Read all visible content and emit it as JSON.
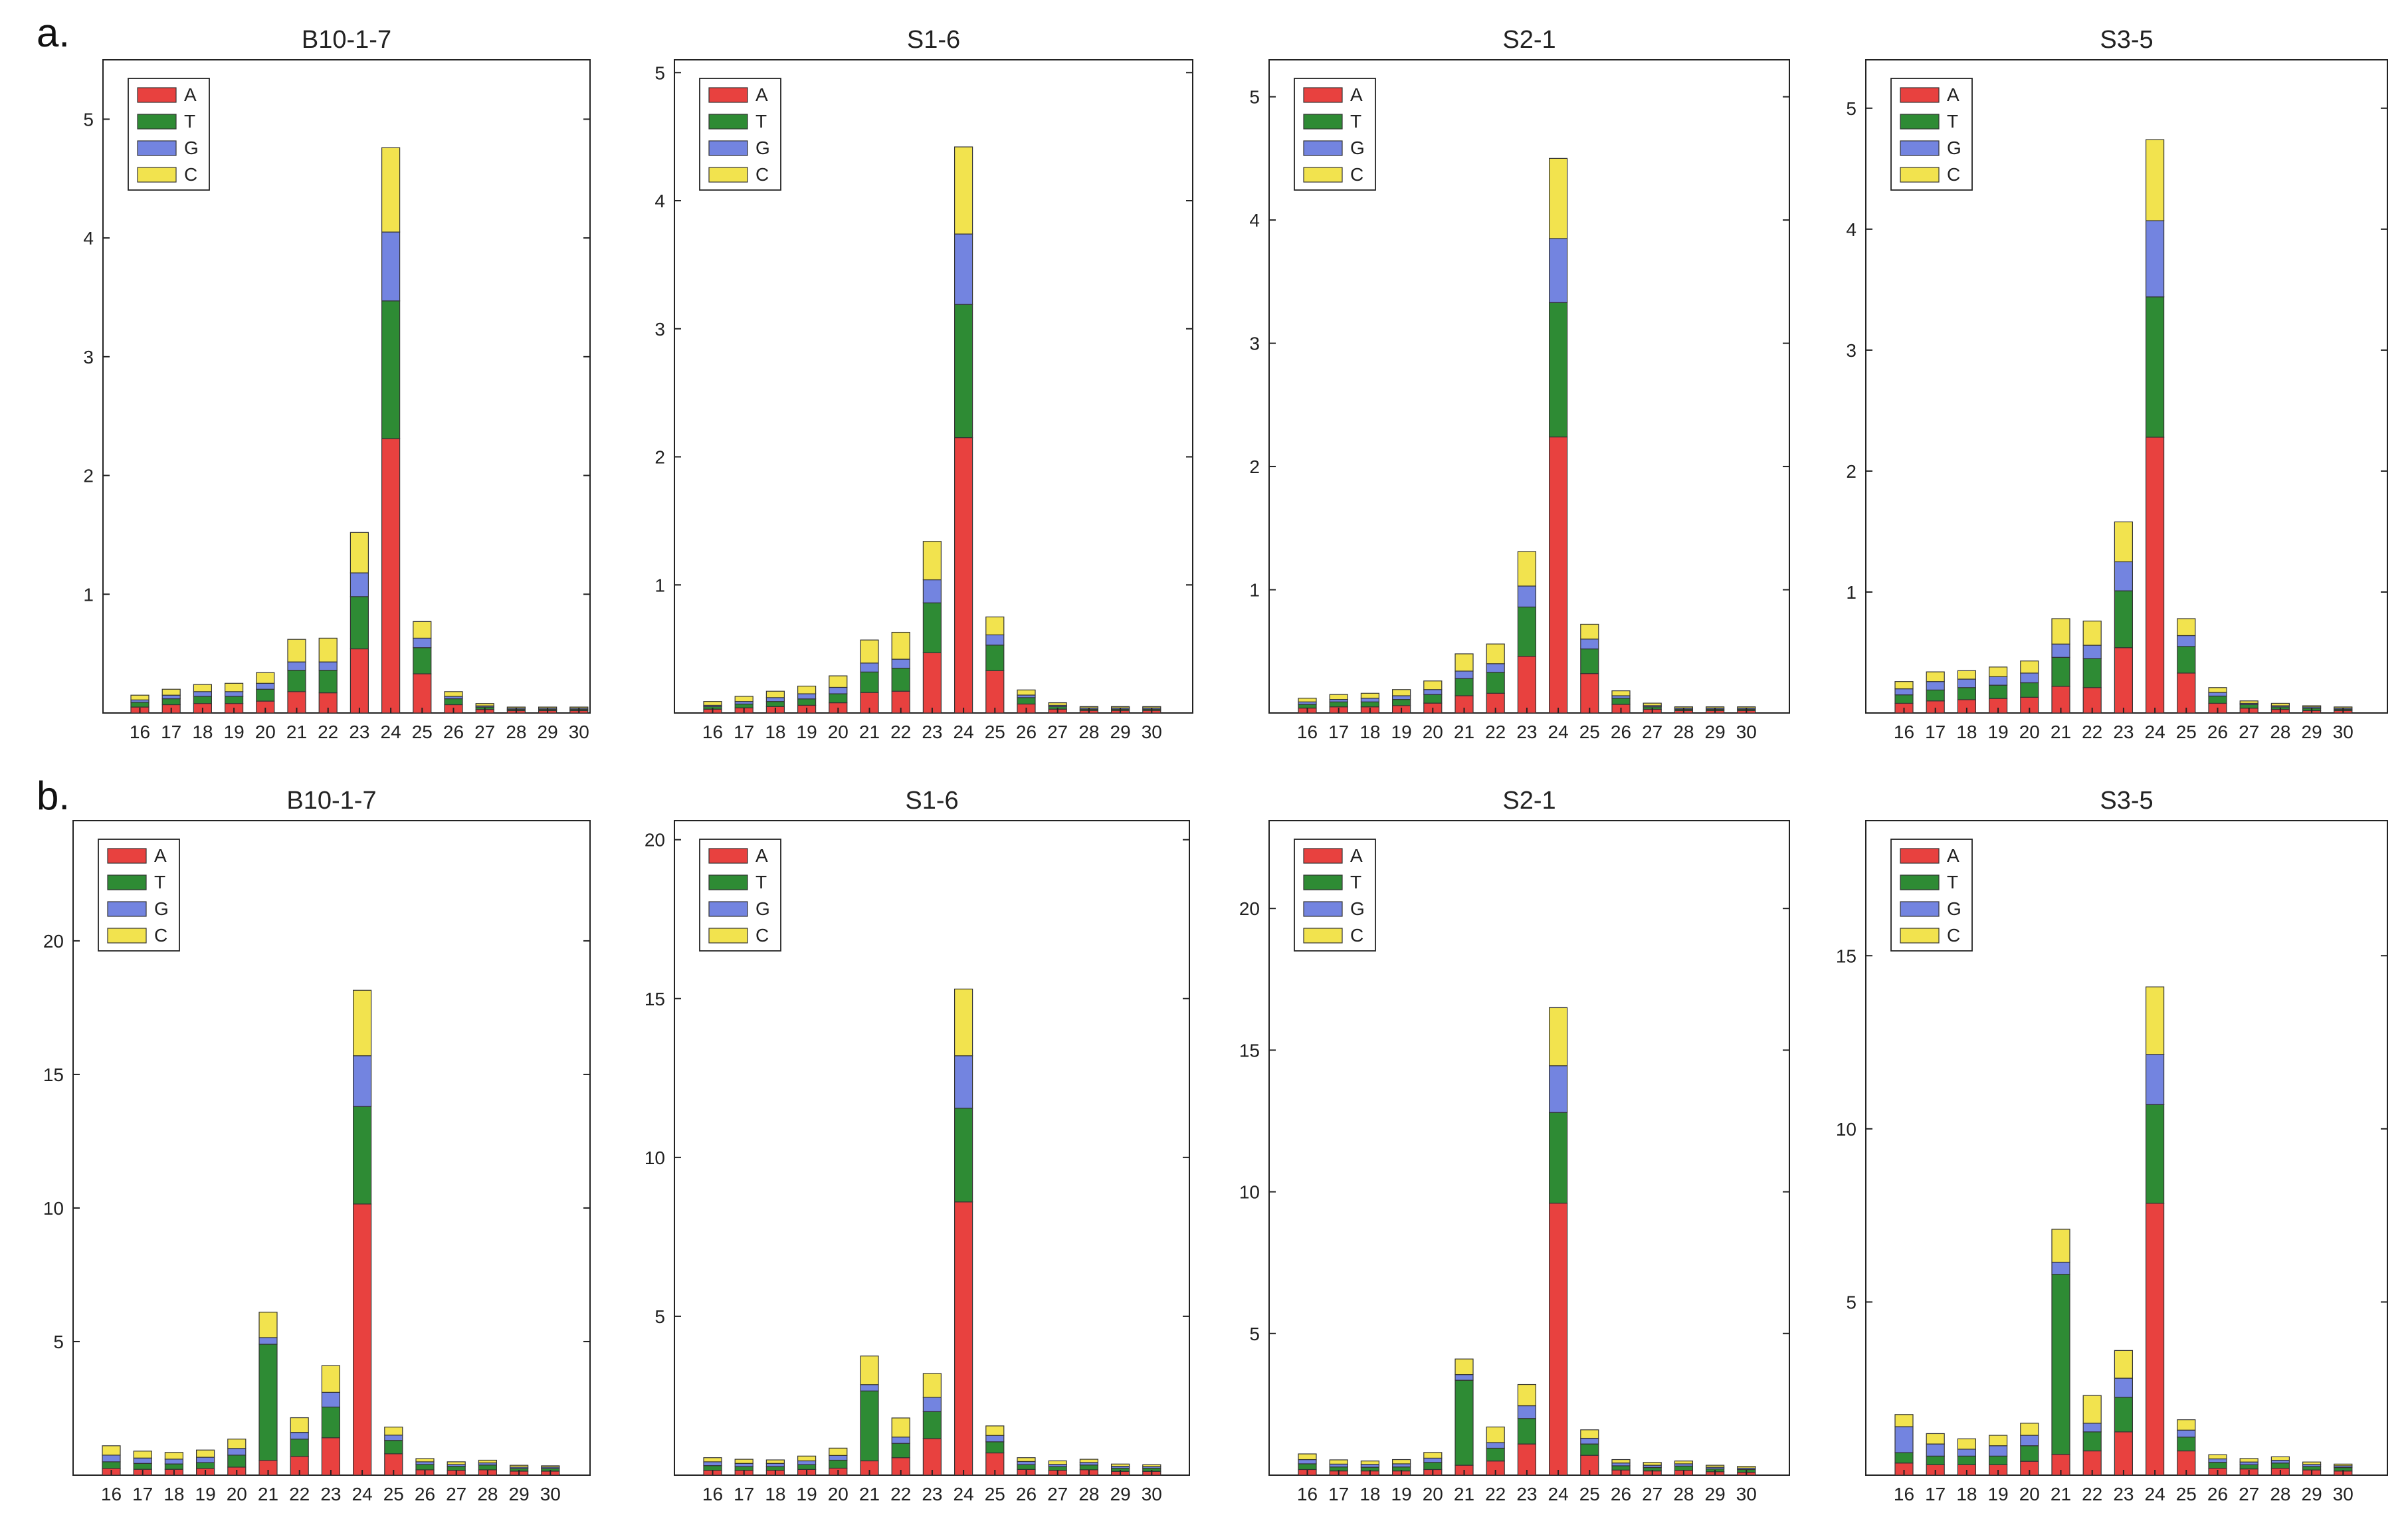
{
  "panel_labels": [
    "a.",
    "b."
  ],
  "colors": {
    "A": "#e8413f",
    "T": "#2e8b34",
    "G": "#7384e0",
    "C": "#f2e34e"
  },
  "chart_data": [
    {
      "type": "bar",
      "title": "B10-1-7",
      "ylim": [
        0,
        5.5
      ],
      "yticks": [
        1,
        2,
        3,
        4,
        5
      ],
      "categories": [
        "16",
        "17",
        "18",
        "19",
        "20",
        "21",
        "22",
        "23",
        "24",
        "25",
        "26",
        "27",
        "28",
        "29",
        "30"
      ],
      "series": [
        {
          "name": "A",
          "values": [
            0.05,
            0.07,
            0.08,
            0.08,
            0.1,
            0.18,
            0.17,
            0.54,
            2.31,
            0.33,
            0.07,
            0.03,
            0.02,
            0.02,
            0.02
          ]
        },
        {
          "name": "T",
          "values": [
            0.04,
            0.05,
            0.06,
            0.06,
            0.1,
            0.18,
            0.19,
            0.44,
            1.16,
            0.22,
            0.05,
            0.02,
            0.01,
            0.01,
            0.01
          ]
        },
        {
          "name": "G",
          "values": [
            0.02,
            0.03,
            0.04,
            0.04,
            0.05,
            0.07,
            0.07,
            0.2,
            0.58,
            0.08,
            0.02,
            0.01,
            0.01,
            0.01,
            0.01
          ]
        },
        {
          "name": "C",
          "values": [
            0.04,
            0.05,
            0.06,
            0.07,
            0.09,
            0.19,
            0.2,
            0.34,
            0.71,
            0.14,
            0.04,
            0.02,
            0.01,
            0.01,
            0.01
          ]
        }
      ]
    },
    {
      "type": "bar",
      "title": "S1-6",
      "ylim": [
        0,
        5.1
      ],
      "yticks": [
        1,
        2,
        3,
        4,
        5
      ],
      "categories": [
        "16",
        "17",
        "18",
        "19",
        "20",
        "21",
        "22",
        "23",
        "24",
        "25",
        "26",
        "27",
        "28",
        "29",
        "30"
      ],
      "series": [
        {
          "name": "A",
          "values": [
            0.03,
            0.04,
            0.05,
            0.06,
            0.08,
            0.16,
            0.17,
            0.47,
            2.15,
            0.33,
            0.07,
            0.03,
            0.02,
            0.02,
            0.02
          ]
        },
        {
          "name": "T",
          "values": [
            0.02,
            0.03,
            0.04,
            0.05,
            0.07,
            0.16,
            0.18,
            0.39,
            1.04,
            0.2,
            0.05,
            0.02,
            0.01,
            0.01,
            0.01
          ]
        },
        {
          "name": "G",
          "values": [
            0.01,
            0.02,
            0.03,
            0.04,
            0.05,
            0.07,
            0.07,
            0.18,
            0.55,
            0.08,
            0.02,
            0.01,
            0.01,
            0.01,
            0.01
          ]
        },
        {
          "name": "C",
          "values": [
            0.03,
            0.04,
            0.05,
            0.06,
            0.09,
            0.18,
            0.21,
            0.3,
            0.68,
            0.14,
            0.04,
            0.02,
            0.01,
            0.01,
            0.01
          ]
        }
      ]
    },
    {
      "type": "bar",
      "title": "S2-1",
      "ylim": [
        0,
        5.3
      ],
      "yticks": [
        1,
        2,
        3,
        4,
        5
      ],
      "categories": [
        "16",
        "17",
        "18",
        "19",
        "20",
        "21",
        "22",
        "23",
        "24",
        "25",
        "26",
        "27",
        "28",
        "29",
        "30"
      ],
      "series": [
        {
          "name": "A",
          "values": [
            0.04,
            0.05,
            0.05,
            0.06,
            0.08,
            0.14,
            0.16,
            0.46,
            2.24,
            0.32,
            0.07,
            0.03,
            0.02,
            0.02,
            0.02
          ]
        },
        {
          "name": "T",
          "values": [
            0.03,
            0.04,
            0.04,
            0.05,
            0.07,
            0.14,
            0.17,
            0.4,
            1.09,
            0.2,
            0.05,
            0.02,
            0.01,
            0.01,
            0.01
          ]
        },
        {
          "name": "G",
          "values": [
            0.02,
            0.02,
            0.03,
            0.03,
            0.04,
            0.06,
            0.07,
            0.17,
            0.52,
            0.08,
            0.02,
            0.01,
            0.01,
            0.01,
            0.01
          ]
        },
        {
          "name": "C",
          "values": [
            0.03,
            0.04,
            0.04,
            0.05,
            0.07,
            0.14,
            0.16,
            0.28,
            0.65,
            0.12,
            0.04,
            0.02,
            0.01,
            0.01,
            0.01
          ]
        }
      ]
    },
    {
      "type": "bar",
      "title": "S3-5",
      "ylim": [
        0,
        5.4
      ],
      "yticks": [
        1,
        2,
        3,
        4,
        5
      ],
      "categories": [
        "16",
        "17",
        "18",
        "19",
        "20",
        "21",
        "22",
        "23",
        "24",
        "25",
        "26",
        "27",
        "28",
        "29",
        "30"
      ],
      "series": [
        {
          "name": "A",
          "values": [
            0.08,
            0.1,
            0.11,
            0.12,
            0.13,
            0.22,
            0.21,
            0.54,
            2.28,
            0.33,
            0.08,
            0.04,
            0.03,
            0.02,
            0.02
          ]
        },
        {
          "name": "T",
          "values": [
            0.07,
            0.09,
            0.1,
            0.11,
            0.12,
            0.24,
            0.24,
            0.47,
            1.16,
            0.22,
            0.06,
            0.03,
            0.02,
            0.02,
            0.01
          ]
        },
        {
          "name": "G",
          "values": [
            0.05,
            0.07,
            0.07,
            0.07,
            0.08,
            0.11,
            0.11,
            0.24,
            0.63,
            0.09,
            0.03,
            0.01,
            0.01,
            0.01,
            0.01
          ]
        },
        {
          "name": "C",
          "values": [
            0.06,
            0.08,
            0.07,
            0.08,
            0.1,
            0.21,
            0.2,
            0.33,
            0.67,
            0.14,
            0.04,
            0.02,
            0.02,
            0.01,
            0.01
          ]
        }
      ]
    },
    {
      "type": "bar",
      "title": "B10-1-7",
      "ylim": [
        0,
        24.5
      ],
      "yticks": [
        5,
        10,
        15,
        20
      ],
      "categories": [
        "16",
        "17",
        "18",
        "19",
        "20",
        "21",
        "22",
        "23",
        "24",
        "25",
        "26",
        "27",
        "28",
        "29",
        "30"
      ],
      "series": [
        {
          "name": "A",
          "values": [
            0.25,
            0.22,
            0.22,
            0.25,
            0.3,
            0.55,
            0.7,
            1.4,
            10.15,
            0.8,
            0.2,
            0.18,
            0.2,
            0.15,
            0.15
          ]
        },
        {
          "name": "T",
          "values": [
            0.25,
            0.22,
            0.2,
            0.22,
            0.45,
            4.35,
            0.65,
            1.15,
            3.65,
            0.5,
            0.2,
            0.15,
            0.18,
            0.1,
            0.1
          ]
        },
        {
          "name": "G",
          "values": [
            0.25,
            0.2,
            0.18,
            0.2,
            0.25,
            0.25,
            0.25,
            0.55,
            1.9,
            0.2,
            0.1,
            0.07,
            0.08,
            0.05,
            0.05
          ]
        },
        {
          "name": "C",
          "values": [
            0.35,
            0.26,
            0.25,
            0.27,
            0.35,
            0.95,
            0.55,
            1.0,
            2.45,
            0.3,
            0.12,
            0.1,
            0.1,
            0.07,
            0.05
          ]
        }
      ]
    },
    {
      "type": "bar",
      "title": "S1-6",
      "ylim": [
        0,
        20.6
      ],
      "yticks": [
        5,
        10,
        15,
        20
      ],
      "categories": [
        "16",
        "17",
        "18",
        "19",
        "20",
        "21",
        "22",
        "23",
        "24",
        "25",
        "26",
        "27",
        "28",
        "29",
        "30"
      ],
      "series": [
        {
          "name": "A",
          "values": [
            0.15,
            0.15,
            0.15,
            0.18,
            0.22,
            0.45,
            0.55,
            1.15,
            8.6,
            0.7,
            0.18,
            0.15,
            0.17,
            0.12,
            0.12
          ]
        },
        {
          "name": "T",
          "values": [
            0.15,
            0.12,
            0.12,
            0.15,
            0.25,
            2.2,
            0.45,
            0.85,
            2.95,
            0.35,
            0.15,
            0.12,
            0.15,
            0.1,
            0.1
          ]
        },
        {
          "name": "G",
          "values": [
            0.12,
            0.1,
            0.1,
            0.12,
            0.15,
            0.2,
            0.2,
            0.45,
            1.65,
            0.2,
            0.1,
            0.07,
            0.08,
            0.06,
            0.05
          ]
        },
        {
          "name": "C",
          "values": [
            0.13,
            0.13,
            0.11,
            0.15,
            0.23,
            0.9,
            0.6,
            0.75,
            2.1,
            0.3,
            0.12,
            0.11,
            0.1,
            0.07,
            0.06
          ]
        }
      ]
    },
    {
      "type": "bar",
      "title": "S2-1",
      "ylim": [
        0,
        23.1
      ],
      "yticks": [
        5,
        10,
        15,
        20
      ],
      "categories": [
        "16",
        "17",
        "18",
        "19",
        "20",
        "21",
        "22",
        "23",
        "24",
        "25",
        "26",
        "27",
        "28",
        "29",
        "30"
      ],
      "series": [
        {
          "name": "A",
          "values": [
            0.2,
            0.15,
            0.15,
            0.15,
            0.2,
            0.35,
            0.5,
            1.1,
            9.6,
            0.7,
            0.18,
            0.15,
            0.17,
            0.12,
            0.1
          ]
        },
        {
          "name": "T",
          "values": [
            0.2,
            0.14,
            0.13,
            0.14,
            0.25,
            3.0,
            0.45,
            0.9,
            3.2,
            0.4,
            0.15,
            0.12,
            0.15,
            0.1,
            0.1
          ]
        },
        {
          "name": "G",
          "values": [
            0.15,
            0.1,
            0.1,
            0.11,
            0.15,
            0.2,
            0.2,
            0.45,
            1.65,
            0.2,
            0.1,
            0.08,
            0.08,
            0.06,
            0.05
          ]
        },
        {
          "name": "C",
          "values": [
            0.2,
            0.15,
            0.12,
            0.15,
            0.2,
            0.55,
            0.55,
            0.75,
            2.05,
            0.3,
            0.12,
            0.1,
            0.1,
            0.07,
            0.06
          ]
        }
      ]
    },
    {
      "type": "bar",
      "title": "S3-5",
      "ylim": [
        0,
        18.9
      ],
      "yticks": [
        5,
        10,
        15
      ],
      "categories": [
        "16",
        "17",
        "18",
        "19",
        "20",
        "21",
        "22",
        "23",
        "24",
        "25",
        "26",
        "27",
        "28",
        "29",
        "30"
      ],
      "series": [
        {
          "name": "A",
          "values": [
            0.35,
            0.3,
            0.3,
            0.3,
            0.4,
            0.6,
            0.7,
            1.25,
            7.85,
            0.7,
            0.2,
            0.18,
            0.2,
            0.15,
            0.12
          ]
        },
        {
          "name": "T",
          "values": [
            0.3,
            0.25,
            0.25,
            0.25,
            0.45,
            5.2,
            0.55,
            1.0,
            2.85,
            0.4,
            0.17,
            0.12,
            0.15,
            0.1,
            0.1
          ]
        },
        {
          "name": "G",
          "values": [
            0.75,
            0.35,
            0.2,
            0.3,
            0.3,
            0.35,
            0.25,
            0.55,
            1.45,
            0.2,
            0.1,
            0.08,
            0.08,
            0.06,
            0.05
          ]
        },
        {
          "name": "C",
          "values": [
            0.35,
            0.3,
            0.3,
            0.3,
            0.35,
            0.95,
            0.8,
            0.8,
            1.95,
            0.3,
            0.12,
            0.1,
            0.1,
            0.07,
            0.05
          ]
        }
      ]
    }
  ]
}
